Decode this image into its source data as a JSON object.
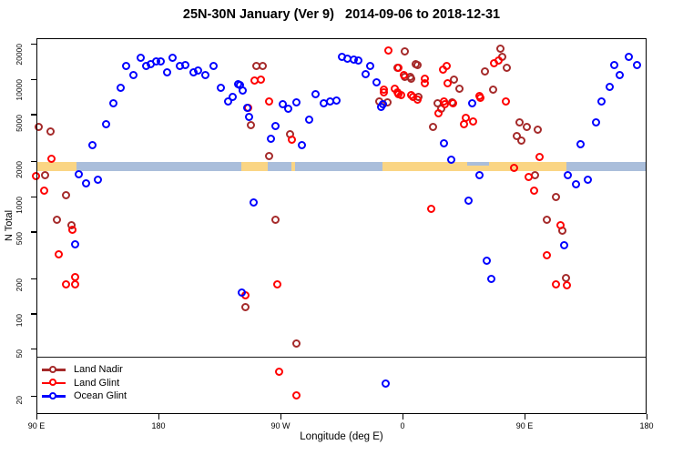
{
  "title": "25N-30N January (Ver 9)   2014-09-06 to 2018-12-31",
  "legend": {
    "items": [
      {
        "label": "Land Nadir",
        "color": "#A52A2A"
      },
      {
        "label": "Land Glint",
        "color": "#FF0000"
      },
      {
        "label": "Ocean Glint",
        "color": "#0000FF"
      }
    ]
  },
  "chart_data": {
    "type": "scatter",
    "title": "25N-30N January (Ver 9)   2014-09-06 to 2018-12-31",
    "xlabel": "Longitude (deg E)",
    "ylabel": "N Total",
    "x_axis_note": "x stored as degrees east of the left edge (90 E); axis reads 90 E, 180, 90 W, 0, 90 E, 180",
    "xlim": [
      0,
      450
    ],
    "ylim": [
      14,
      22400
    ],
    "y_scale": "log",
    "grid": false,
    "legend_position": "bottom-left",
    "x_ticks": [
      {
        "pos": 0,
        "label": "90 E"
      },
      {
        "pos": 90,
        "label": "180"
      },
      {
        "pos": 180,
        "label": "90 W"
      },
      {
        "pos": 270,
        "label": "0"
      },
      {
        "pos": 360,
        "label": "90 E"
      },
      {
        "pos": 450,
        "label": "180"
      }
    ],
    "y_ticks": [
      20,
      50,
      100,
      200,
      500,
      1000,
      2000,
      5000,
      10000,
      20000
    ],
    "ref_line_n": 43,
    "surface_band": {
      "n_top": 1975,
      "n_bottom": 1650,
      "land_color": "#FAD584",
      "ocean_color": "#AABEDB",
      "land_segments": [
        [
          0,
          29.5
        ],
        [
          151.1,
          170.6
        ],
        [
          188.0,
          190.5
        ],
        [
          255.2,
          390.8
        ]
      ],
      "ocean_segments": [
        [
          29.5,
          151.1
        ],
        [
          170.6,
          255.2
        ],
        [
          390.8,
          450
        ]
      ],
      "ocean_notches": [
        [
          317.6,
          333.8
        ]
      ]
    },
    "series": [
      {
        "name": "Land Nadir",
        "color": "#A52A2A",
        "points": [
          [
            2,
            3900
          ],
          [
            10.7,
            3560
          ],
          [
            6.7,
            1510
          ],
          [
            22.2,
            1020
          ],
          [
            15.4,
            630
          ],
          [
            26.2,
            565
          ],
          [
            162.5,
            12900
          ],
          [
            167.2,
            12900
          ],
          [
            158.5,
            4030
          ],
          [
            187.4,
            3380
          ],
          [
            171.9,
            2200
          ],
          [
            176.6,
            630
          ],
          [
            154.4,
            113
          ],
          [
            192,
            55
          ],
          [
            253.2,
            6400
          ],
          [
            259.2,
            6280
          ],
          [
            266.6,
            12460
          ],
          [
            272,
            17050
          ],
          [
            272,
            10390
          ],
          [
            276,
            10390
          ],
          [
            280,
            13340
          ],
          [
            281.4,
            13100
          ],
          [
            276.7,
            10030
          ],
          [
            282.1,
            7020
          ],
          [
            292.8,
            3900
          ],
          [
            296.2,
            6170
          ],
          [
            298.8,
            5560
          ],
          [
            308.2,
            9870
          ],
          [
            312.2,
            8270
          ],
          [
            306.9,
            6280
          ],
          [
            331.1,
            11600
          ],
          [
            337.1,
            8120
          ],
          [
            342.5,
            17980
          ],
          [
            343.8,
            15300
          ],
          [
            347.2,
            12460
          ],
          [
            356.6,
            4240
          ],
          [
            362,
            3900
          ],
          [
            370,
            3700
          ],
          [
            354.6,
            3270
          ],
          [
            358,
            2990
          ],
          [
            368,
            1510
          ],
          [
            376.7,
            630
          ],
          [
            383.4,
            980
          ],
          [
            388.1,
            510
          ],
          [
            390.8,
            200
          ]
        ]
      },
      {
        "name": "Land Glint",
        "color": "#FF0000",
        "points": [
          [
            11.4,
            2060
          ],
          [
            6,
            1110
          ],
          [
            0,
            1490
          ],
          [
            16.8,
            320
          ],
          [
            26.9,
            517
          ],
          [
            28.9,
            204
          ],
          [
            28.9,
            177
          ],
          [
            22.2,
            177
          ],
          [
            156.5,
            5650
          ],
          [
            161.2,
            9700
          ],
          [
            165.9,
            9870
          ],
          [
            171.9,
            6400
          ],
          [
            188.7,
            3050
          ],
          [
            178,
            177
          ],
          [
            179.3,
            32
          ],
          [
            192,
            20
          ],
          [
            154.4,
            142
          ],
          [
            259.9,
            17350
          ],
          [
            267.3,
            12460
          ],
          [
            256.5,
            8120
          ],
          [
            264.6,
            8270
          ],
          [
            267.3,
            7440
          ],
          [
            276.7,
            7310
          ],
          [
            271.3,
            10750
          ],
          [
            286.8,
            10030
          ],
          [
            286.8,
            9180
          ],
          [
            256.5,
            7700
          ],
          [
            266.6,
            7700
          ],
          [
            269.3,
            7310
          ],
          [
            278,
            7020
          ],
          [
            281.4,
            6640
          ],
          [
            291.4,
            775
          ],
          [
            296.8,
            5080
          ],
          [
            300.2,
            12050
          ],
          [
            303.5,
            9180
          ],
          [
            302.9,
            12900
          ],
          [
            300.9,
            6400
          ],
          [
            301.5,
            6060
          ],
          [
            307.6,
            6170
          ],
          [
            317,
            4650
          ],
          [
            322.4,
            4330
          ],
          [
            315.6,
            4090
          ],
          [
            327,
            7130
          ],
          [
            327.7,
            6890
          ],
          [
            337.8,
            13570
          ],
          [
            341.1,
            14320
          ],
          [
            346.5,
            6400
          ],
          [
            352.6,
            1750
          ],
          [
            363.3,
            1460
          ],
          [
            367.3,
            1120
          ],
          [
            371.4,
            2160
          ],
          [
            386.8,
            560
          ],
          [
            376.7,
            311
          ],
          [
            383.4,
            177
          ],
          [
            391.4,
            174
          ]
        ]
      },
      {
        "name": "Ocean Glint",
        "color": "#0000FF",
        "points": [
          [
            41.6,
            2740
          ],
          [
            51.7,
            4100
          ],
          [
            57,
            6200
          ],
          [
            62.5,
            8350
          ],
          [
            66.5,
            12900
          ],
          [
            71.9,
            10800
          ],
          [
            77.2,
            15070
          ],
          [
            81.3,
            12900
          ],
          [
            84.6,
            13340
          ],
          [
            88.7,
            14070
          ],
          [
            92,
            14070
          ],
          [
            96.7,
            11340
          ],
          [
            100.7,
            15070
          ],
          [
            106.1,
            12900
          ],
          [
            110.1,
            13130
          ],
          [
            116.2,
            11340
          ],
          [
            119.5,
            11750
          ],
          [
            124.9,
            10750
          ],
          [
            131,
            12900
          ],
          [
            136.3,
            8350
          ],
          [
            141.7,
            6400
          ],
          [
            145,
            7020
          ],
          [
            149.1,
            9030
          ],
          [
            150.4,
            8810
          ],
          [
            152.4,
            7980
          ],
          [
            155.8,
            5650
          ],
          [
            157.1,
            4730
          ],
          [
            176.6,
            3950
          ],
          [
            173.3,
            3080
          ],
          [
            182,
            6060
          ],
          [
            186,
            5560
          ],
          [
            192,
            6280
          ],
          [
            196.1,
            2720
          ],
          [
            201.5,
            4480
          ],
          [
            206.2,
            7440
          ],
          [
            212.2,
            6180
          ],
          [
            216.9,
            6400
          ],
          [
            221.6,
            6520
          ],
          [
            225.6,
            15440
          ],
          [
            229.7,
            14900
          ],
          [
            234.4,
            14620
          ],
          [
            237.7,
            14350
          ],
          [
            243.1,
            10900
          ],
          [
            246.4,
            12900
          ],
          [
            251.1,
            9350
          ],
          [
            254.5,
            5760
          ],
          [
            255.8,
            6060
          ],
          [
            31.6,
            1530
          ],
          [
            36.9,
            1280
          ],
          [
            45.6,
            1370
          ],
          [
            28.9,
            388
          ],
          [
            160.5,
            880
          ],
          [
            151.7,
            150
          ],
          [
            257.9,
            25
          ],
          [
            300.9,
            2840
          ],
          [
            306.2,
            2030
          ],
          [
            321.7,
            6180
          ],
          [
            319,
            915
          ],
          [
            327,
            1510
          ],
          [
            332.4,
            283
          ],
          [
            335.8,
            197
          ],
          [
            389.4,
            381
          ],
          [
            392.1,
            1510
          ],
          [
            398.2,
            1260
          ],
          [
            401.6,
            2790
          ],
          [
            406.9,
            1380
          ],
          [
            413,
            4240
          ],
          [
            417,
            6400
          ],
          [
            423,
            8500
          ],
          [
            426.4,
            13130
          ],
          [
            430.4,
            10800
          ],
          [
            437.1,
            15440
          ],
          [
            443.1,
            13130
          ]
        ]
      }
    ]
  }
}
